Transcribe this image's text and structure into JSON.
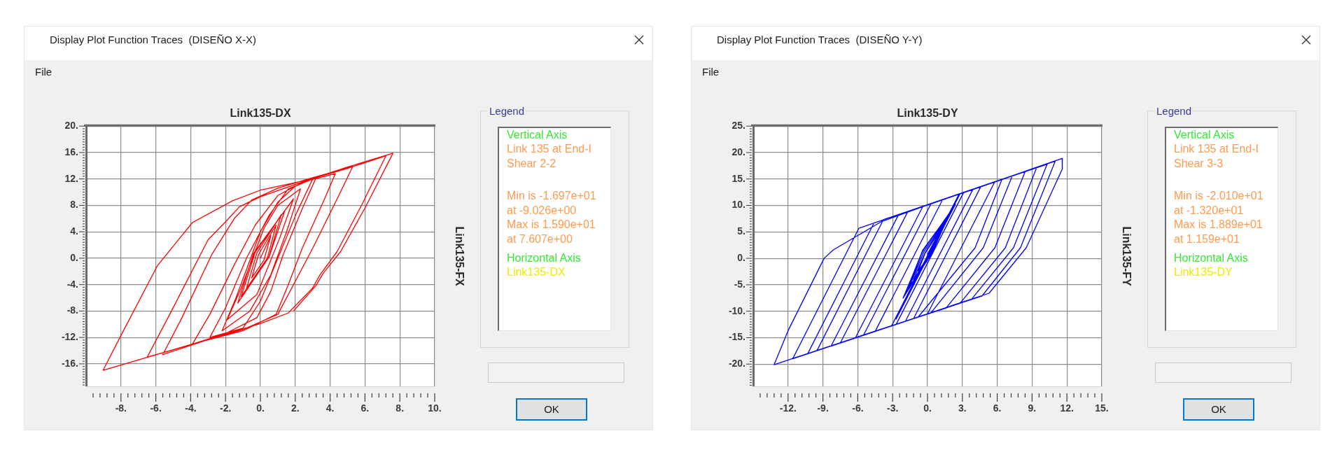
{
  "chart_data": [
    {
      "type": "line",
      "title": "Link135-DX",
      "ylabel": "Link135-FX",
      "annotations": [
        "Display Plot Function Traces  (DISEÑO X-X)",
        "File",
        "Legend",
        "Vertical Axis",
        "Link 135 at End-I",
        "Shear 2-2",
        "Min is -1.697e+01",
        "at -9.026e+00",
        "Max is 1.590e+01",
        "at 7.607e+00",
        "Horizontal Axis",
        "Link135-DX",
        "OK"
      ],
      "x": [
        0,
        0.6,
        0.2,
        -0.5,
        -0.1,
        0.9,
        0.4,
        -0.8,
        -0.2,
        1.2,
        0.5,
        -1.1,
        -0.3,
        1.4,
        0.5,
        -1.3,
        -0.4,
        1.9,
        1.1,
        -0.2,
        -1.9,
        -1.1,
        0.2,
        1.0,
        2.3,
        1.5,
        0.6,
        -0.6,
        -2.2,
        -1.4,
        0.0,
        1.0,
        2.0,
        3.0,
        2.1,
        1.0,
        0.0,
        -1.0,
        -2.9,
        -2.0,
        -0.8,
        0.5,
        1.6,
        3.2,
        2.4,
        1.3,
        0.6,
        -0.2,
        -2.0,
        -3.9,
        -2.9,
        -1.5,
        -0.3,
        1.0,
        2.5,
        4.3,
        3.6,
        2.4,
        1.6,
        0.9,
        -1.0,
        -3.2,
        -5.6,
        -4.5,
        -2.8,
        -1.5,
        -0.5,
        1.0,
        3.0,
        5.3,
        4.5,
        3.0,
        2.0,
        1.0,
        -1.0,
        -4.0,
        -6.5,
        -5.2,
        -3.0,
        -2.0,
        -1.2,
        0.0,
        2.8,
        5.0,
        7.2,
        5.8,
        4.4,
        3.4,
        3.0,
        1.6,
        0.0,
        -3.9,
        -9.026,
        -8.0,
        -5.9,
        -3.9,
        -1.6,
        0.0,
        2.8,
        5.0,
        7.607,
        6.0,
        4.6,
        3.6,
        3.2,
        1.9
      ],
      "values": [
        0,
        3.4,
        -0.3,
        -3.0,
        0.6,
        5.0,
        0.0,
        -4.6,
        0.8,
        6.6,
        0.3,
        -5.8,
        0.9,
        7.2,
        0.2,
        -6.8,
        0.7,
        9.0,
        3.0,
        -5.5,
        -9.3,
        -4.5,
        4.5,
        8.0,
        10.5,
        4.0,
        -2.5,
        -8.0,
        -11.0,
        -6.0,
        4.0,
        8.5,
        10.9,
        12.0,
        7.0,
        0.0,
        -6.5,
        -10.6,
        -12.0,
        -7.5,
        0.0,
        6.5,
        10.5,
        12.2,
        7.5,
        0.5,
        -5.0,
        -9.0,
        -11.4,
        -13.0,
        -8.5,
        -1.0,
        5.0,
        9.5,
        11.6,
        12.8,
        8.5,
        1.5,
        -4.0,
        -8.5,
        -11.0,
        -12.5,
        -14.6,
        -9.0,
        0.5,
        6.0,
        8.8,
        10.6,
        12.2,
        13.9,
        9.5,
        1.5,
        -3.5,
        -8.5,
        -10.8,
        -13.1,
        -15.0,
        -8.5,
        2.8,
        5.5,
        7.8,
        9.3,
        11.9,
        13.6,
        15.5,
        8.0,
        1.0,
        -2.6,
        -4.5,
        -8.3,
        -9.9,
        -13.0,
        -16.97,
        -11.7,
        -1.1,
        5.4,
        8.7,
        10.3,
        11.9,
        13.8,
        15.9,
        7.6,
        1.0,
        -2.3,
        -4.1,
        -8.0
      ],
      "color": "#ff0000",
      "marker": "none",
      "grid": true,
      "xlim": [
        -10,
        10
      ],
      "ylim": [
        -19.4,
        20
      ],
      "xticks": [
        {
          "value": -9.6,
          "label": null
        },
        {
          "value": -9.2,
          "label": null
        },
        {
          "value": -8.8,
          "label": null
        },
        {
          "value": -8.4,
          "label": null
        },
        {
          "value": -8,
          "label": "-8."
        },
        {
          "value": -7.6,
          "label": null
        },
        {
          "value": -7.2,
          "label": null
        },
        {
          "value": -6.8,
          "label": null
        },
        {
          "value": -6.4,
          "label": null
        },
        {
          "value": -6,
          "label": "-6."
        },
        {
          "value": -5.6,
          "label": null
        },
        {
          "value": -5.2,
          "label": null
        },
        {
          "value": -4.8,
          "label": null
        },
        {
          "value": -4.4,
          "label": null
        },
        {
          "value": -4,
          "label": "-4."
        },
        {
          "value": -3.6,
          "label": null
        },
        {
          "value": -3.2,
          "label": null
        },
        {
          "value": -2.8,
          "label": null
        },
        {
          "value": -2.4,
          "label": null
        },
        {
          "value": -2,
          "label": "-2."
        },
        {
          "value": -1.6,
          "label": null
        },
        {
          "value": -1.2,
          "label": null
        },
        {
          "value": -0.8,
          "label": null
        },
        {
          "value": -0.4,
          "label": null
        },
        {
          "value": 0,
          "label": "0."
        },
        {
          "value": 0.4,
          "label": null
        },
        {
          "value": 0.8,
          "label": null
        },
        {
          "value": 1.2,
          "label": null
        },
        {
          "value": 1.6,
          "label": null
        },
        {
          "value": 2,
          "label": "2."
        },
        {
          "value": 2.4,
          "label": null
        },
        {
          "value": 2.8,
          "label": null
        },
        {
          "value": 3.2,
          "label": null
        },
        {
          "value": 3.6,
          "label": null
        },
        {
          "value": 4,
          "label": "4."
        },
        {
          "value": 4.4,
          "label": null
        },
        {
          "value": 4.8,
          "label": null
        },
        {
          "value": 5.2,
          "label": null
        },
        {
          "value": 5.6,
          "label": null
        },
        {
          "value": 6,
          "label": "6."
        },
        {
          "value": 6.4,
          "label": null
        },
        {
          "value": 6.8,
          "label": null
        },
        {
          "value": 7.2,
          "label": null
        },
        {
          "value": 7.6,
          "label": null
        },
        {
          "value": 8,
          "label": "8."
        },
        {
          "value": 8.4,
          "label": null
        },
        {
          "value": 8.8,
          "label": null
        },
        {
          "value": 9.2,
          "label": null
        },
        {
          "value": 9.6,
          "label": null
        },
        {
          "value": 10,
          "label": "10."
        }
      ],
      "yticks": [
        {
          "value": -19.2,
          "label": null
        },
        {
          "value": -18.8,
          "label": null
        },
        {
          "value": -18.4,
          "label": null
        },
        {
          "value": -18,
          "label": null
        },
        {
          "value": -17.6,
          "label": null
        },
        {
          "value": -17.2,
          "label": null
        },
        {
          "value": -16.8,
          "label": null
        },
        {
          "value": -16.4,
          "label": null
        },
        {
          "value": -16,
          "label": "-16."
        },
        {
          "value": -15.6,
          "label": null
        },
        {
          "value": -15.2,
          "label": null
        },
        {
          "value": -14.8,
          "label": null
        },
        {
          "value": -14.4,
          "label": null
        },
        {
          "value": -14,
          "label": null
        },
        {
          "value": -13.6,
          "label": null
        },
        {
          "value": -13.2,
          "label": null
        },
        {
          "value": -12.8,
          "label": null
        },
        {
          "value": -12.4,
          "label": null
        },
        {
          "value": -12,
          "label": "-12."
        },
        {
          "value": -11.6,
          "label": null
        },
        {
          "value": -11.2,
          "label": null
        },
        {
          "value": -10.8,
          "label": null
        },
        {
          "value": -10.4,
          "label": null
        },
        {
          "value": -10,
          "label": null
        },
        {
          "value": -9.6,
          "label": null
        },
        {
          "value": -9.2,
          "label": null
        },
        {
          "value": -8.8,
          "label": null
        },
        {
          "value": -8.4,
          "label": null
        },
        {
          "value": -8,
          "label": "-8."
        },
        {
          "value": -7.6,
          "label": null
        },
        {
          "value": -7.2,
          "label": null
        },
        {
          "value": -6.8,
          "label": null
        },
        {
          "value": -6.4,
          "label": null
        },
        {
          "value": -6,
          "label": null
        },
        {
          "value": -5.6,
          "label": null
        },
        {
          "value": -5.2,
          "label": null
        },
        {
          "value": -4.8,
          "label": null
        },
        {
          "value": -4.4,
          "label": null
        },
        {
          "value": -4,
          "label": "-4."
        },
        {
          "value": -3.6,
          "label": null
        },
        {
          "value": -3.2,
          "label": null
        },
        {
          "value": -2.8,
          "label": null
        },
        {
          "value": -2.4,
          "label": null
        },
        {
          "value": -2,
          "label": null
        },
        {
          "value": -1.6,
          "label": null
        },
        {
          "value": -1.2,
          "label": null
        },
        {
          "value": -0.8,
          "label": null
        },
        {
          "value": -0.4,
          "label": null
        },
        {
          "value": 0,
          "label": "0."
        },
        {
          "value": 0.4,
          "label": null
        },
        {
          "value": 0.8,
          "label": null
        },
        {
          "value": 1.2,
          "label": null
        },
        {
          "value": 1.6,
          "label": null
        },
        {
          "value": 2,
          "label": null
        },
        {
          "value": 2.4,
          "label": null
        },
        {
          "value": 2.8,
          "label": null
        },
        {
          "value": 3.2,
          "label": null
        },
        {
          "value": 3.6,
          "label": null
        },
        {
          "value": 4,
          "label": "4."
        },
        {
          "value": 4.4,
          "label": null
        },
        {
          "value": 4.8,
          "label": null
        },
        {
          "value": 5.2,
          "label": null
        },
        {
          "value": 5.6,
          "label": null
        },
        {
          "value": 6,
          "label": null
        },
        {
          "value": 6.4,
          "label": null
        },
        {
          "value": 6.8,
          "label": null
        },
        {
          "value": 7.2,
          "label": null
        },
        {
          "value": 7.6,
          "label": null
        },
        {
          "value": 8,
          "label": "8."
        },
        {
          "value": 8.4,
          "label": null
        },
        {
          "value": 8.8,
          "label": null
        },
        {
          "value": 9.2,
          "label": null
        },
        {
          "value": 9.6,
          "label": null
        },
        {
          "value": 10,
          "label": null
        },
        {
          "value": 10.4,
          "label": null
        },
        {
          "value": 10.8,
          "label": null
        },
        {
          "value": 11.2,
          "label": null
        },
        {
          "value": 11.6,
          "label": null
        },
        {
          "value": 12,
          "label": "12."
        },
        {
          "value": 12.4,
          "label": null
        },
        {
          "value": 12.8,
          "label": null
        },
        {
          "value": 13.2,
          "label": null
        },
        {
          "value": 13.6,
          "label": null
        },
        {
          "value": 14,
          "label": null
        },
        {
          "value": 14.4,
          "label": null
        },
        {
          "value": 14.8,
          "label": null
        },
        {
          "value": 15.2,
          "label": null
        },
        {
          "value": 15.6,
          "label": null
        },
        {
          "value": 16,
          "label": "16."
        },
        {
          "value": 16.4,
          "label": null
        },
        {
          "value": 16.8,
          "label": null
        },
        {
          "value": 17.2,
          "label": null
        },
        {
          "value": 17.6,
          "label": null
        },
        {
          "value": 18,
          "label": null
        },
        {
          "value": 18.4,
          "label": null
        },
        {
          "value": 18.8,
          "label": null
        },
        {
          "value": 19.2,
          "label": null
        },
        {
          "value": 19.6,
          "label": null
        },
        {
          "value": 20,
          "label": "20."
        }
      ]
    },
    {
      "type": "line",
      "title": "Link135-DY",
      "ylabel": "Link135-FY",
      "annotations": [
        "Display Plot Function Traces  (DISEÑO Y-Y)",
        "File",
        "Legend",
        "Vertical Axis",
        "Link 135 at End-I",
        "Shear 3-3",
        "Min is -2.010e+01",
        "at -1.320e+01",
        "Max is 1.889e+01",
        "at 1.159e+01",
        "Horizontal Axis",
        "Link135-DY",
        "OK"
      ],
      "x": [
        0.0,
        0.8,
        0.2,
        -0.8,
        -0.2,
        1.2,
        0.2,
        -1.2,
        -0.2,
        1.6,
        0.3,
        -1.6,
        -0.3,
        1.7,
        0.4,
        -1.7,
        -0.4,
        1.8,
        0.4,
        -1.9,
        -0.4,
        2.0,
        0.4,
        -2.1,
        -0.4,
        2.4,
        -2.7,
        2.8,
        3.1,
        -2.7,
        -3.1,
        2.7,
        3.9,
        -1.9,
        -4.5,
        1.3,
        4.6,
        -1.2,
        -5.5,
        0.3,
        5.8,
        0.0,
        -6.2,
        -0.4,
        6.4,
        4.1,
        -0.8,
        -7.5,
        -1.7,
        7.3,
        4.8,
        0.3,
        -8.3,
        -2.5,
        8.4,
        5.8,
        1.6,
        -9.5,
        -3.8,
        9.4,
        6.7,
        2.8,
        -10.3,
        -4.6,
        10.3,
        7.4,
        3.8,
        -11.6,
        -5.9,
        11.0,
        8.0,
        4.7,
        -13.2,
        -12.0,
        -8.9,
        -8.1,
        -4.0,
        -3.0,
        0.0,
        3.1,
        6.0,
        9.1,
        11.59,
        11.6,
        8.5,
        5.3,
        2.0
      ],
      "values": [
        0.8,
        4.0,
        0.6,
        -2.4,
        1.0,
        5.6,
        0.8,
        -4.0,
        1.1,
        7.2,
        1.0,
        -5.6,
        1.3,
        7.6,
        1.3,
        -6.0,
        1.5,
        8.0,
        1.0,
        -6.6,
        1.6,
        8.8,
        1.2,
        -7.5,
        1.4,
        10.2,
        -11.5,
        12.2,
        12.4,
        -12.5,
        -12.8,
        12.1,
        13.0,
        -11.9,
        -13.8,
        11.1,
        13.6,
        -11.4,
        -14.5,
        10.3,
        14.5,
        -10.5,
        -15.0,
        9.8,
        14.9,
        2.0,
        -11.1,
        -16.0,
        8.8,
        15.6,
        2.0,
        -10.3,
        -16.6,
        8.2,
        16.4,
        2.0,
        -9.4,
        -17.4,
        7.3,
        17.2,
        2.0,
        -8.5,
        -18.0,
        6.7,
        17.8,
        2.0,
        -7.7,
        -19.0,
        5.7,
        18.4,
        2.0,
        -7.1,
        -20.1,
        -13.7,
        0.0,
        1.6,
        6.9,
        7.7,
        10.1,
        12.4,
        14.6,
        17.0,
        18.89,
        16.9,
        2.0,
        -6.6,
        -9.0
      ],
      "color": "#0000ff",
      "marker": "none",
      "grid": true,
      "xlim": [
        -15,
        15
      ],
      "ylim": [
        -24.2,
        25
      ],
      "xticks": [
        {
          "value": -14.4,
          "label": null
        },
        {
          "value": -13.8,
          "label": null
        },
        {
          "value": -13.2,
          "label": null
        },
        {
          "value": -12.6,
          "label": null
        },
        {
          "value": -12,
          "label": "-12."
        },
        {
          "value": -11.4,
          "label": null
        },
        {
          "value": -10.8,
          "label": null
        },
        {
          "value": -10.2,
          "label": null
        },
        {
          "value": -9.6,
          "label": null
        },
        {
          "value": -9,
          "label": "-9."
        },
        {
          "value": -8.4,
          "label": null
        },
        {
          "value": -7.8,
          "label": null
        },
        {
          "value": -7.2,
          "label": null
        },
        {
          "value": -6.6,
          "label": null
        },
        {
          "value": -6,
          "label": "-6."
        },
        {
          "value": -5.4,
          "label": null
        },
        {
          "value": -4.8,
          "label": null
        },
        {
          "value": -4.2,
          "label": null
        },
        {
          "value": -3.6,
          "label": null
        },
        {
          "value": -3,
          "label": "-3."
        },
        {
          "value": -2.4,
          "label": null
        },
        {
          "value": -1.8,
          "label": null
        },
        {
          "value": -1.2,
          "label": null
        },
        {
          "value": -0.6,
          "label": null
        },
        {
          "value": 0,
          "label": "0."
        },
        {
          "value": 0.6,
          "label": null
        },
        {
          "value": 1.2,
          "label": null
        },
        {
          "value": 1.8,
          "label": null
        },
        {
          "value": 2.4,
          "label": null
        },
        {
          "value": 3,
          "label": "3."
        },
        {
          "value": 3.6,
          "label": null
        },
        {
          "value": 4.2,
          "label": null
        },
        {
          "value": 4.8,
          "label": null
        },
        {
          "value": 5.4,
          "label": null
        },
        {
          "value": 6,
          "label": "6."
        },
        {
          "value": 6.6,
          "label": null
        },
        {
          "value": 7.2,
          "label": null
        },
        {
          "value": 7.8,
          "label": null
        },
        {
          "value": 8.4,
          "label": null
        },
        {
          "value": 9,
          "label": "9."
        },
        {
          "value": 9.6,
          "label": null
        },
        {
          "value": 10.2,
          "label": null
        },
        {
          "value": 10.8,
          "label": null
        },
        {
          "value": 11.4,
          "label": null
        },
        {
          "value": 12,
          "label": "12."
        },
        {
          "value": 12.6,
          "label": null
        },
        {
          "value": 13.2,
          "label": null
        },
        {
          "value": 13.8,
          "label": null
        },
        {
          "value": 14.4,
          "label": null
        },
        {
          "value": 15,
          "label": "15."
        }
      ],
      "yticks": [
        {
          "value": -24,
          "label": null
        },
        {
          "value": -23.5,
          "label": null
        },
        {
          "value": -23,
          "label": null
        },
        {
          "value": -22.5,
          "label": null
        },
        {
          "value": -22,
          "label": null
        },
        {
          "value": -21.5,
          "label": null
        },
        {
          "value": -21,
          "label": null
        },
        {
          "value": -20.5,
          "label": null
        },
        {
          "value": -20,
          "label": "-20."
        },
        {
          "value": -19.5,
          "label": null
        },
        {
          "value": -19,
          "label": null
        },
        {
          "value": -18.5,
          "label": null
        },
        {
          "value": -18,
          "label": null
        },
        {
          "value": -17.5,
          "label": null
        },
        {
          "value": -17,
          "label": null
        },
        {
          "value": -16.5,
          "label": null
        },
        {
          "value": -16,
          "label": null
        },
        {
          "value": -15.5,
          "label": null
        },
        {
          "value": -15,
          "label": "-15."
        },
        {
          "value": -14.5,
          "label": null
        },
        {
          "value": -14,
          "label": null
        },
        {
          "value": -13.5,
          "label": null
        },
        {
          "value": -13,
          "label": null
        },
        {
          "value": -12.5,
          "label": null
        },
        {
          "value": -12,
          "label": null
        },
        {
          "value": -11.5,
          "label": null
        },
        {
          "value": -11,
          "label": null
        },
        {
          "value": -10.5,
          "label": null
        },
        {
          "value": -10,
          "label": "-10."
        },
        {
          "value": -9.5,
          "label": null
        },
        {
          "value": -9,
          "label": null
        },
        {
          "value": -8.5,
          "label": null
        },
        {
          "value": -8,
          "label": null
        },
        {
          "value": -7.5,
          "label": null
        },
        {
          "value": -7,
          "label": null
        },
        {
          "value": -6.5,
          "label": null
        },
        {
          "value": -6,
          "label": null
        },
        {
          "value": -5.5,
          "label": null
        },
        {
          "value": -5,
          "label": "-5."
        },
        {
          "value": -4.5,
          "label": null
        },
        {
          "value": -4,
          "label": null
        },
        {
          "value": -3.5,
          "label": null
        },
        {
          "value": -3,
          "label": null
        },
        {
          "value": -2.5,
          "label": null
        },
        {
          "value": -2,
          "label": null
        },
        {
          "value": -1.5,
          "label": null
        },
        {
          "value": -1,
          "label": null
        },
        {
          "value": -0.5,
          "label": null
        },
        {
          "value": 0,
          "label": "0."
        },
        {
          "value": 0.5,
          "label": null
        },
        {
          "value": 1,
          "label": null
        },
        {
          "value": 1.5,
          "label": null
        },
        {
          "value": 2,
          "label": null
        },
        {
          "value": 2.5,
          "label": null
        },
        {
          "value": 3,
          "label": null
        },
        {
          "value": 3.5,
          "label": null
        },
        {
          "value": 4,
          "label": null
        },
        {
          "value": 4.5,
          "label": null
        },
        {
          "value": 5,
          "label": "5."
        },
        {
          "value": 5.5,
          "label": null
        },
        {
          "value": 6,
          "label": null
        },
        {
          "value": 6.5,
          "label": null
        },
        {
          "value": 7,
          "label": null
        },
        {
          "value": 7.5,
          "label": null
        },
        {
          "value": 8,
          "label": null
        },
        {
          "value": 8.5,
          "label": null
        },
        {
          "value": 9,
          "label": null
        },
        {
          "value": 9.5,
          "label": null
        },
        {
          "value": 10,
          "label": "10."
        },
        {
          "value": 10.5,
          "label": null
        },
        {
          "value": 11,
          "label": null
        },
        {
          "value": 11.5,
          "label": null
        },
        {
          "value": 12,
          "label": null
        },
        {
          "value": 12.5,
          "label": null
        },
        {
          "value": 13,
          "label": null
        },
        {
          "value": 13.5,
          "label": null
        },
        {
          "value": 14,
          "label": null
        },
        {
          "value": 14.5,
          "label": null
        },
        {
          "value": 15,
          "label": "15."
        },
        {
          "value": 15.5,
          "label": null
        },
        {
          "value": 16,
          "label": null
        },
        {
          "value": 16.5,
          "label": null
        },
        {
          "value": 17,
          "label": null
        },
        {
          "value": 17.5,
          "label": null
        },
        {
          "value": 18,
          "label": null
        },
        {
          "value": 18.5,
          "label": null
        },
        {
          "value": 19,
          "label": null
        },
        {
          "value": 19.5,
          "label": null
        },
        {
          "value": 20,
          "label": "20."
        },
        {
          "value": 20.5,
          "label": null
        },
        {
          "value": 21,
          "label": null
        },
        {
          "value": 21.5,
          "label": null
        },
        {
          "value": 22,
          "label": null
        },
        {
          "value": 22.5,
          "label": null
        },
        {
          "value": 23,
          "label": null
        },
        {
          "value": 23.5,
          "label": null
        },
        {
          "value": 24,
          "label": null
        },
        {
          "value": 24.5,
          "label": null
        },
        {
          "value": 25,
          "label": "25."
        }
      ]
    }
  ]
}
